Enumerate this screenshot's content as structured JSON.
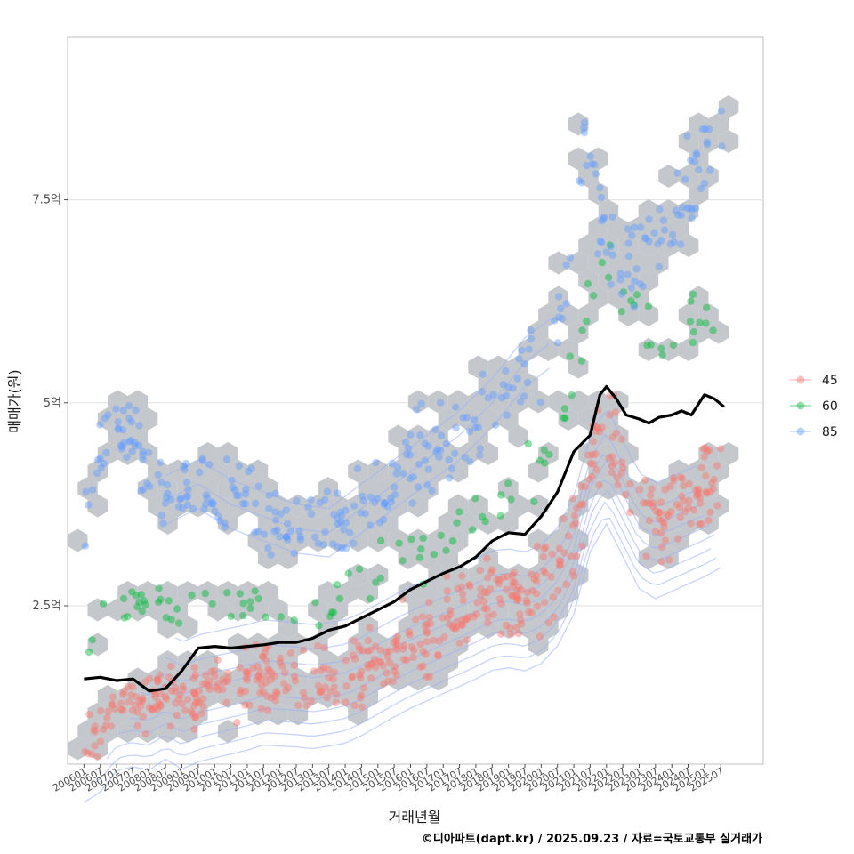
{
  "chart_data": {
    "type": "scatter",
    "xlabel": "거래년월",
    "ylabel": "매매가(원)",
    "caption": "©디아파트(dapt.kr) / 2025.09.23 / 자료=국토교통부 실거래가",
    "x_range": [
      2005.5,
      2026.8
    ],
    "ylim": [
      0.55,
      9.5
    ],
    "y_unit": "억",
    "y_ticks": [
      {
        "value": 2.5,
        "label": "2.5억"
      },
      {
        "value": 5.0,
        "label": "5억"
      },
      {
        "value": 7.5,
        "label": "7.5억"
      }
    ],
    "x_ticks": [
      "200601",
      "200607",
      "200701",
      "200707",
      "200801",
      "200807",
      "200901",
      "200907",
      "201001",
      "201007",
      "201101",
      "201107",
      "201201",
      "201207",
      "201301",
      "201307",
      "201401",
      "201407",
      "201501",
      "201507",
      "201601",
      "201607",
      "201701",
      "201707",
      "201801",
      "201807",
      "201901",
      "201907",
      "202001",
      "202007",
      "202101",
      "202107",
      "202201",
      "202207",
      "202301",
      "202307",
      "202401",
      "202407",
      "202501",
      "202507"
    ],
    "legend": {
      "position": "right",
      "entries": [
        {
          "name": "45",
          "color": "#F8766D"
        },
        {
          "name": "60",
          "color": "#00BA38"
        },
        {
          "name": "85",
          "color": "#619CFF"
        }
      ]
    },
    "series": [
      {
        "name": "45",
        "color": "#F8766D",
        "anchors": [
          [
            2006.0,
            0.85
          ],
          [
            2006.5,
            1.0
          ],
          [
            2007.0,
            1.3
          ],
          [
            2007.5,
            1.35
          ],
          [
            2008.0,
            1.3
          ],
          [
            2008.5,
            1.45
          ],
          [
            2009.0,
            1.3
          ],
          [
            2009.5,
            1.4
          ],
          [
            2010.0,
            1.45
          ],
          [
            2010.5,
            1.5
          ],
          [
            2011.0,
            1.55
          ],
          [
            2011.5,
            1.62
          ],
          [
            2012.0,
            1.6
          ],
          [
            2012.5,
            1.58
          ],
          [
            2013.0,
            1.55
          ],
          [
            2013.5,
            1.58
          ],
          [
            2014.0,
            1.62
          ],
          [
            2014.5,
            1.72
          ],
          [
            2015.0,
            1.85
          ],
          [
            2015.5,
            1.98
          ],
          [
            2016.0,
            2.1
          ],
          [
            2016.5,
            2.2
          ],
          [
            2017.0,
            2.3
          ],
          [
            2017.5,
            2.4
          ],
          [
            2018.0,
            2.5
          ],
          [
            2018.5,
            2.62
          ],
          [
            2019.0,
            2.65
          ],
          [
            2019.5,
            2.6
          ],
          [
            2020.0,
            2.7
          ],
          [
            2020.5,
            2.95
          ],
          [
            2021.0,
            3.4
          ],
          [
            2021.5,
            4.3
          ],
          [
            2022.0,
            4.7
          ],
          [
            2023.0,
            3.75
          ],
          [
            2023.5,
            3.6
          ],
          [
            2024.0,
            3.7
          ],
          [
            2024.5,
            3.8
          ],
          [
            2025.0,
            3.9
          ],
          [
            2025.6,
            4.05
          ]
        ]
      },
      {
        "name": "60",
        "color": "#00BA38",
        "anchors": [
          [
            2006.1,
            1.8
          ],
          [
            2006.8,
            2.6
          ],
          [
            2007.5,
            2.5
          ],
          [
            2008.5,
            2.45
          ],
          [
            2009.5,
            2.55
          ],
          [
            2010.5,
            2.5
          ],
          [
            2011.5,
            2.55
          ],
          [
            2012.5,
            2.4
          ],
          [
            2013.5,
            2.5
          ],
          [
            2014.5,
            2.7
          ],
          [
            2015.5,
            3.0
          ],
          [
            2016.5,
            3.15
          ],
          [
            2017.5,
            3.4
          ],
          [
            2018.5,
            3.6
          ],
          [
            2019.5,
            4.1
          ],
          [
            2020.5,
            4.2
          ],
          [
            2021.0,
            5.5
          ],
          [
            2022.0,
            6.7
          ],
          [
            2024.0,
            5.6
          ],
          [
            2024.5,
            6.0
          ],
          [
            2025.5,
            6.1
          ]
        ]
      },
      {
        "name": "85",
        "color": "#619CFF",
        "anchors": [
          [
            2006.0,
            3.5
          ],
          [
            2006.4,
            4.3
          ],
          [
            2006.8,
            4.6
          ],
          [
            2007.2,
            4.7
          ],
          [
            2008.5,
            3.8
          ],
          [
            2009.5,
            4.0
          ],
          [
            2010.5,
            3.75
          ],
          [
            2011.5,
            3.6
          ],
          [
            2012.5,
            3.45
          ],
          [
            2013.5,
            3.4
          ],
          [
            2014.5,
            3.7
          ],
          [
            2015.5,
            4.0
          ],
          [
            2016.5,
            4.3
          ],
          [
            2017.5,
            4.6
          ],
          [
            2018.5,
            5.0
          ],
          [
            2019.5,
            5.5
          ],
          [
            2020.5,
            5.8
          ],
          [
            2021.0,
            7.0
          ],
          [
            2021.3,
            8.3
          ],
          [
            2022.0,
            6.8
          ],
          [
            2023.0,
            6.6
          ],
          [
            2023.5,
            7.1
          ],
          [
            2024.0,
            7.3
          ],
          [
            2024.5,
            7.6
          ],
          [
            2025.0,
            7.9
          ],
          [
            2025.6,
            8.6
          ]
        ]
      }
    ],
    "median_line": {
      "color": "#000000",
      "values": [
        [
          2006.0,
          1.6
        ],
        [
          2006.5,
          1.62
        ],
        [
          2007.0,
          1.58
        ],
        [
          2007.5,
          1.6
        ],
        [
          2008.0,
          1.45
        ],
        [
          2008.5,
          1.48
        ],
        [
          2009.0,
          1.7
        ],
        [
          2009.5,
          1.98
        ],
        [
          2010.0,
          2.0
        ],
        [
          2010.5,
          1.98
        ],
        [
          2011.0,
          2.0
        ],
        [
          2011.5,
          2.02
        ],
        [
          2012.0,
          2.05
        ],
        [
          2012.5,
          2.05
        ],
        [
          2013.0,
          2.1
        ],
        [
          2013.5,
          2.2
        ],
        [
          2014.0,
          2.25
        ],
        [
          2014.5,
          2.35
        ],
        [
          2015.0,
          2.45
        ],
        [
          2015.5,
          2.55
        ],
        [
          2016.0,
          2.7
        ],
        [
          2016.5,
          2.8
        ],
        [
          2017.0,
          2.9
        ],
        [
          2017.5,
          2.98
        ],
        [
          2018.0,
          3.1
        ],
        [
          2018.5,
          3.3
        ],
        [
          2019.0,
          3.4
        ],
        [
          2019.5,
          3.38
        ],
        [
          2020.0,
          3.6
        ],
        [
          2020.5,
          3.9
        ],
        [
          2021.0,
          4.4
        ],
        [
          2021.5,
          4.6
        ],
        [
          2021.8,
          5.1
        ],
        [
          2022.0,
          5.2
        ],
        [
          2022.3,
          5.05
        ],
        [
          2022.6,
          4.85
        ],
        [
          2023.0,
          4.8
        ],
        [
          2023.3,
          4.75
        ],
        [
          2023.6,
          4.82
        ],
        [
          2024.0,
          4.85
        ],
        [
          2024.3,
          4.9
        ],
        [
          2024.6,
          4.85
        ],
        [
          2025.0,
          5.1
        ],
        [
          2025.3,
          5.05
        ],
        [
          2025.6,
          4.95
        ]
      ]
    }
  }
}
